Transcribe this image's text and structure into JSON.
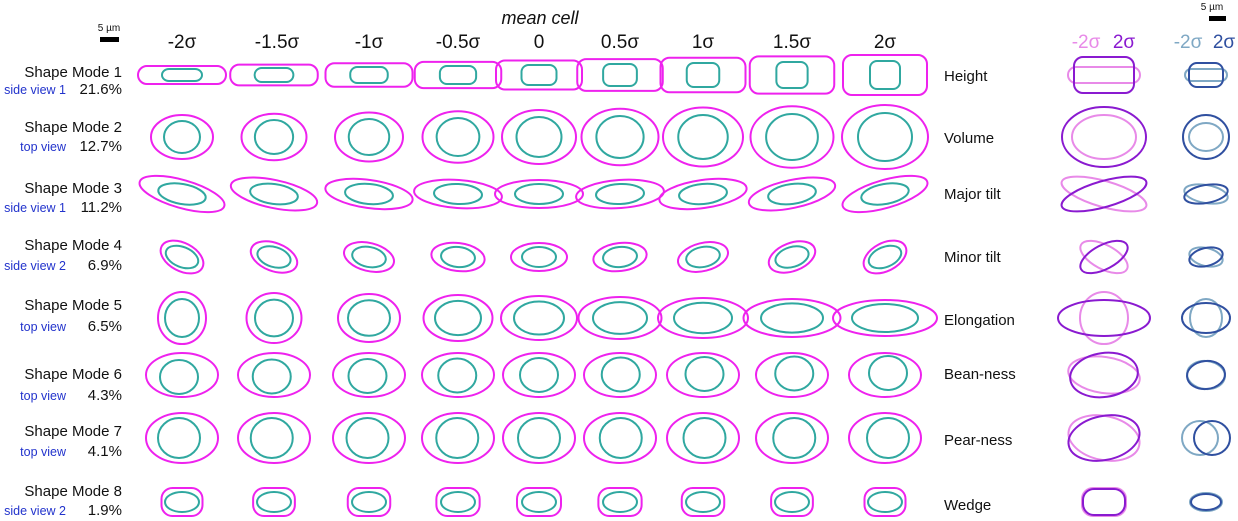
{
  "header": {
    "mean_cell_label": "mean cell",
    "scale_bar_label": "5 µm"
  },
  "columns": [
    "-2σ",
    "-1.5σ",
    "-1σ",
    "-0.5σ",
    "0",
    "0.5σ",
    "1σ",
    "1.5σ",
    "2σ"
  ],
  "legends": {
    "cell": {
      "neg_label": "-2σ",
      "pos_label": "2σ",
      "neg_color": "#e88ae8",
      "pos_color": "#8a1ad0"
    },
    "nucleus": {
      "neg_label": "-2σ",
      "pos_label": "2σ",
      "neg_color": "#7fa8c4",
      "pos_color": "#3050a0"
    }
  },
  "colors": {
    "cell_outline": "#ee22ee",
    "nucleus_outline": "#30a8a0"
  },
  "modes": [
    {
      "name": "Shape Mode 1",
      "view": "side view 1",
      "variance": "21.6%",
      "description": "Height"
    },
    {
      "name": "Shape Mode 2",
      "view": "top view",
      "variance": "12.7%",
      "description": "Volume"
    },
    {
      "name": "Shape Mode 3",
      "view": "side view 1",
      "variance": "11.2%",
      "description": "Major tilt"
    },
    {
      "name": "Shape Mode 4",
      "view": "side view 2",
      "variance": "6.9%",
      "description": "Minor tilt"
    },
    {
      "name": "Shape Mode 5",
      "view": "top view",
      "variance": "6.5%",
      "description": "Elongation"
    },
    {
      "name": "Shape Mode 6",
      "view": "top view",
      "variance": "4.3%",
      "description": "Bean-ness"
    },
    {
      "name": "Shape Mode 7",
      "view": "top view",
      "variance": "4.1%",
      "description": "Pear-ness"
    },
    {
      "name": "Shape Mode 8",
      "view": "side view 2",
      "variance": "1.9%",
      "description": "Wedge"
    }
  ]
}
